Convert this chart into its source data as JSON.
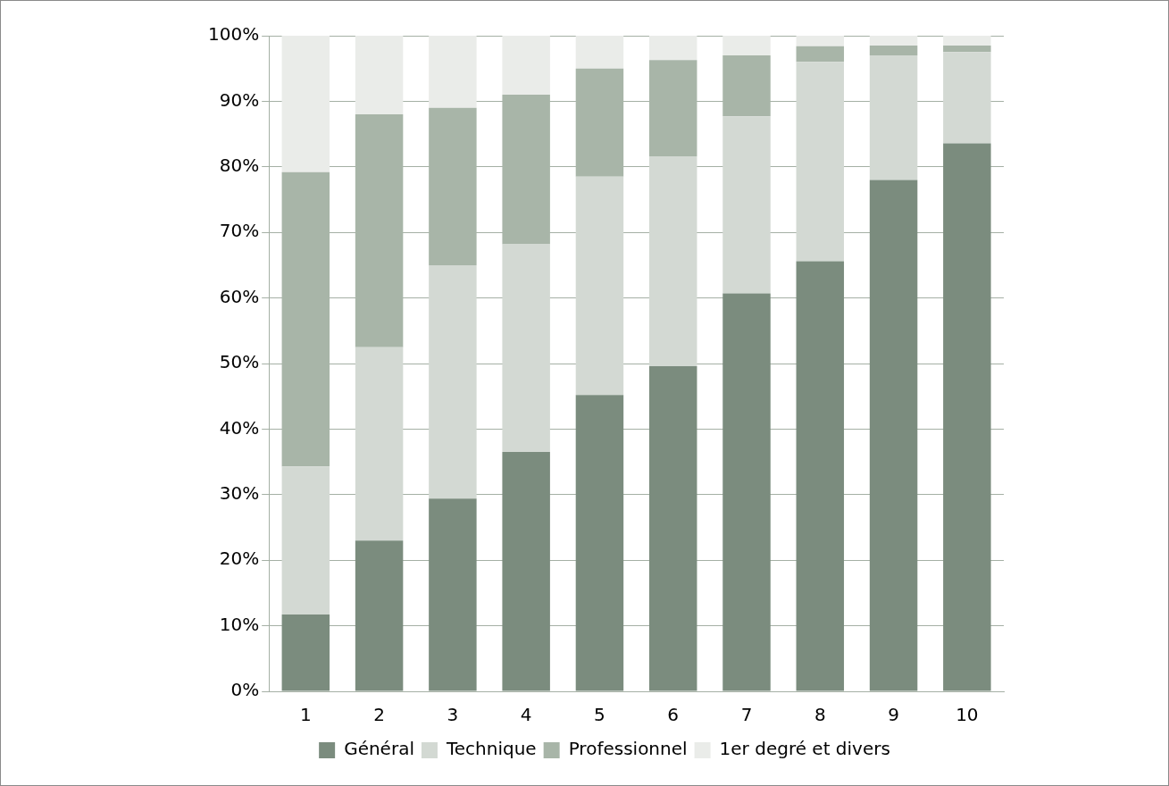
{
  "chart_data": {
    "type": "bar",
    "stacked": true,
    "categories": [
      "1",
      "2",
      "3",
      "4",
      "5",
      "6",
      "7",
      "8",
      "9",
      "10"
    ],
    "series": [
      {
        "name": "Général",
        "color": "#7b8c7e",
        "values": [
          11.7,
          23,
          29.4,
          36.5,
          45.2,
          49.6,
          60.7,
          65.6,
          78,
          83.6
        ]
      },
      {
        "name": "Technique",
        "color": "#d3d9d3",
        "values": [
          22.6,
          29.5,
          35.6,
          31.7,
          33.3,
          32,
          27,
          30.4,
          19,
          13.9
        ]
      },
      {
        "name": "Professionnel",
        "color": "#a8b5a8",
        "values": [
          44.9,
          35.5,
          24,
          22.8,
          16.5,
          14.7,
          9.3,
          2.4,
          1.5,
          1
        ]
      },
      {
        "name": "1er degré et divers",
        "color": "#eaece9",
        "values": [
          20.8,
          12,
          11,
          9,
          5,
          3.7,
          3,
          1.6,
          1.5,
          1.5
        ]
      }
    ],
    "ylim": [
      0,
      100
    ],
    "yticks": [
      {
        "value": 0,
        "label": "0%"
      },
      {
        "value": 10,
        "label": "10%"
      },
      {
        "value": 20,
        "label": "20%"
      },
      {
        "value": 30,
        "label": "30%"
      },
      {
        "value": 40,
        "label": "40%"
      },
      {
        "value": 50,
        "label": "50%"
      },
      {
        "value": 60,
        "label": "60%"
      },
      {
        "value": 70,
        "label": "70%"
      },
      {
        "value": 80,
        "label": "80%"
      },
      {
        "value": 90,
        "label": "90%"
      },
      {
        "value": 100,
        "label": "100%"
      }
    ],
    "grid": "y",
    "legend": "bottom"
  }
}
